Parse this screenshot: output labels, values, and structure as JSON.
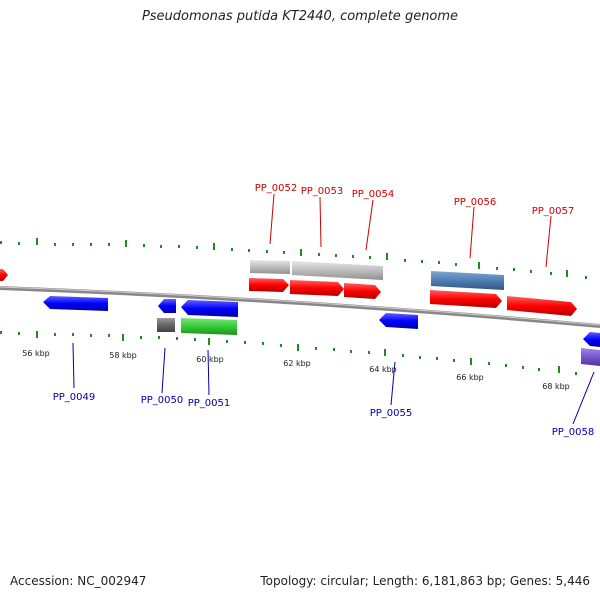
{
  "title": "Pseudomonas putida KT2440, complete genome",
  "footer": {
    "accession": "Accession: NC_002947",
    "summary": "Topology: circular; Length: 6,181,863 bp; Genes: 5,446"
  },
  "colors": {
    "forward_gene": "#ff0000",
    "reverse_gene": "#0000ff",
    "grey_feature": "#bbbbbb",
    "steel_feature": "#4f7fb3",
    "green_feature": "#33cc33",
    "dark_grey_feature": "#666666",
    "purple_feature": "#7755cc",
    "backbone": "#888888",
    "tick": "#228822",
    "forward_label": "#cc0000",
    "reverse_label": "#0000aa"
  },
  "ticks": [
    "56 kbp",
    "58 kbp",
    "60 kbp",
    "62 kbp",
    "64 kbp",
    "66 kbp",
    "68 kbp"
  ],
  "forward_labels": [
    "PP_0052",
    "PP_0053",
    "PP_0054",
    "PP_0056",
    "PP_0057"
  ],
  "reverse_labels": [
    "PP_0049",
    "PP_0050",
    "PP_0051",
    "PP_0055",
    "PP_0058"
  ]
}
